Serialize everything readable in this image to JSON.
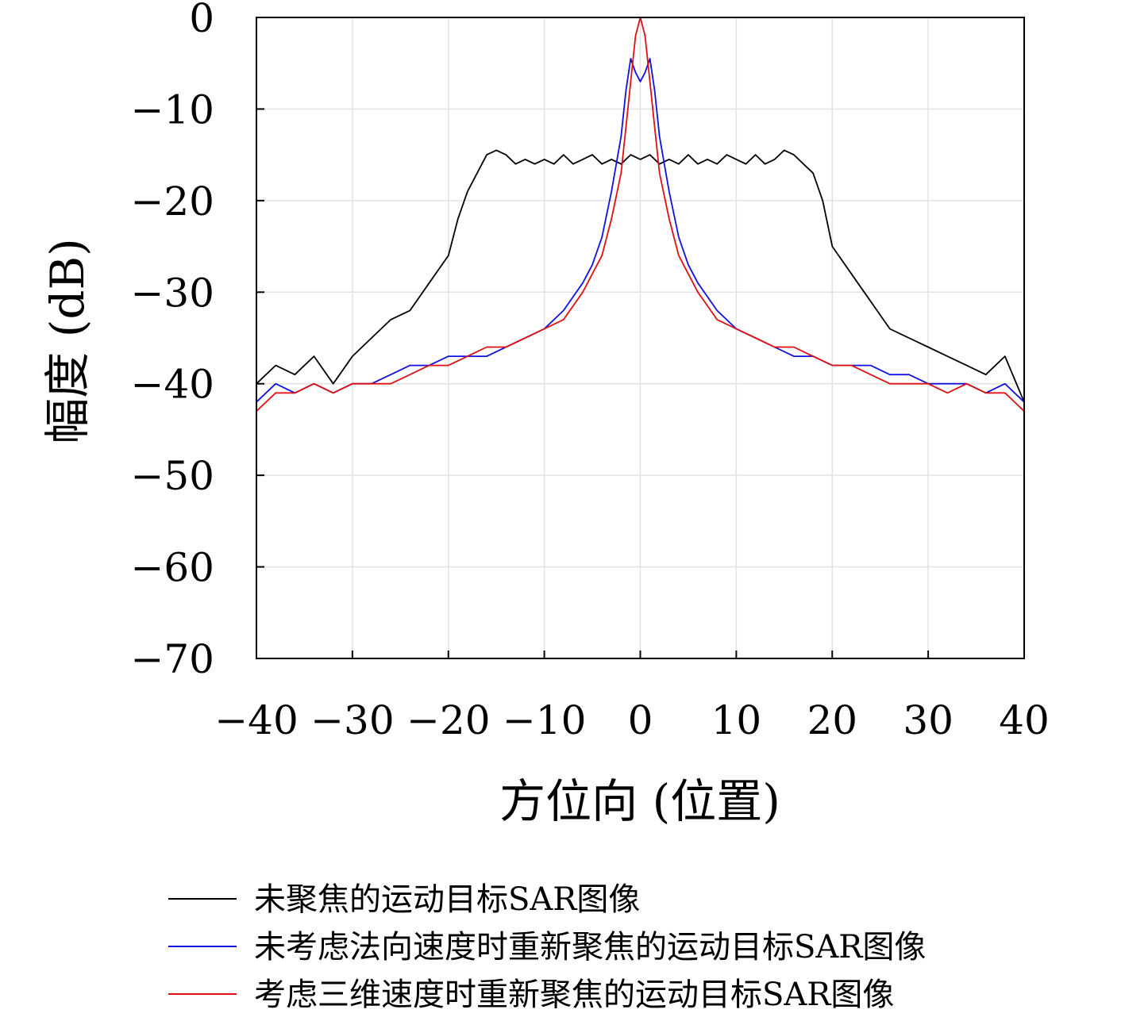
{
  "chart_data": {
    "type": "line",
    "title": "",
    "xlabel": "方位向 (位置)",
    "ylabel": "幅度 (dB)",
    "xlim": [
      -40,
      40
    ],
    "ylim": [
      -70,
      0
    ],
    "xticks": [
      -40,
      -30,
      -20,
      -10,
      0,
      10,
      20,
      30,
      40
    ],
    "xtick_labels": [
      "−40",
      "−30",
      "−20",
      "−10",
      "0",
      "10",
      "20",
      "30",
      "40"
    ],
    "yticks": [
      0,
      -10,
      -20,
      -30,
      -40,
      -50,
      -60,
      -70
    ],
    "ytick_labels": [
      "0",
      "−10",
      "−20",
      "−30",
      "−40",
      "−50",
      "−60",
      "−70"
    ],
    "grid": true,
    "legend_position": "bottom",
    "series": [
      {
        "name": "未聚焦的运动目标SAR图像",
        "color": "#000000",
        "x": [
          -40,
          -38,
          -36,
          -34,
          -32,
          -30,
          -28,
          -26,
          -24,
          -22,
          -20,
          -19,
          -18,
          -17,
          -16,
          -15,
          -14,
          -13,
          -12,
          -11,
          -10,
          -9,
          -8,
          -7,
          -6,
          -5,
          -4,
          -3,
          -2,
          -1,
          0,
          1,
          2,
          3,
          4,
          5,
          6,
          7,
          8,
          9,
          10,
          11,
          12,
          13,
          14,
          15,
          16,
          17,
          18,
          19,
          20,
          22,
          24,
          26,
          28,
          30,
          32,
          34,
          36,
          38,
          40
        ],
        "y": [
          -40,
          -38,
          -39,
          -37,
          -40,
          -37,
          -35,
          -33,
          -32,
          -29,
          -26,
          -22,
          -19,
          -17,
          -15,
          -14.5,
          -15,
          -16,
          -15.5,
          -16,
          -15.5,
          -16,
          -15,
          -16,
          -15.5,
          -15,
          -16,
          -15.5,
          -16,
          -15,
          -15.5,
          -15,
          -16,
          -15.5,
          -16,
          -15,
          -16,
          -15.5,
          -16,
          -15,
          -15.5,
          -16,
          -15,
          -16,
          -15.5,
          -14.5,
          -15,
          -16,
          -17,
          -20,
          -25,
          -28,
          -31,
          -34,
          -35,
          -36,
          -37,
          -38,
          -39,
          -37,
          -42
        ]
      },
      {
        "name": "未考虑法向速度时重新聚焦的运动目标SAR图像",
        "color": "#1010e0",
        "x": [
          -40,
          -38,
          -36,
          -34,
          -32,
          -30,
          -28,
          -26,
          -24,
          -22,
          -20,
          -18,
          -16,
          -14,
          -12,
          -10,
          -8,
          -6,
          -5,
          -4,
          -3,
          -2,
          -1.5,
          -1,
          -0.5,
          0,
          0.5,
          1,
          1.5,
          2,
          3,
          4,
          5,
          6,
          8,
          10,
          12,
          14,
          16,
          18,
          20,
          22,
          24,
          26,
          28,
          30,
          32,
          34,
          36,
          38,
          40
        ],
        "y": [
          -42,
          -40,
          -41,
          -40,
          -41,
          -40,
          -40,
          -39,
          -38,
          -38,
          -37,
          -37,
          -37,
          -36,
          -35,
          -34,
          -32,
          -29,
          -27,
          -24,
          -19,
          -13,
          -8,
          -4.5,
          -6,
          -7,
          -6,
          -4.5,
          -8,
          -13,
          -19,
          -24,
          -27,
          -29,
          -32,
          -34,
          -35,
          -36,
          -37,
          -37,
          -38,
          -38,
          -38,
          -39,
          -39,
          -40,
          -40,
          -40,
          -41,
          -40,
          -42
        ]
      },
      {
        "name": "考虑三维速度时重新聚焦的运动目标SAR图像",
        "color": "#e01010",
        "x": [
          -40,
          -38,
          -36,
          -34,
          -32,
          -30,
          -28,
          -26,
          -24,
          -22,
          -20,
          -18,
          -16,
          -14,
          -12,
          -10,
          -8,
          -6,
          -5,
          -4,
          -3,
          -2,
          -1.5,
          -1,
          -0.5,
          0,
          0.5,
          1,
          1.5,
          2,
          3,
          4,
          5,
          6,
          8,
          10,
          12,
          14,
          16,
          18,
          20,
          22,
          24,
          26,
          28,
          30,
          32,
          34,
          36,
          38,
          40
        ],
        "y": [
          -43,
          -41,
          -41,
          -40,
          -41,
          -40,
          -40,
          -40,
          -39,
          -38,
          -38,
          -37,
          -36,
          -36,
          -35,
          -34,
          -33,
          -30,
          -28,
          -26,
          -22,
          -17,
          -12,
          -7,
          -2,
          0,
          -2,
          -7,
          -12,
          -17,
          -22,
          -26,
          -28,
          -30,
          -33,
          -34,
          -35,
          -36,
          -36,
          -37,
          -38,
          -38,
          -39,
          -40,
          -40,
          -40,
          -41,
          -40,
          -41,
          -41,
          -43
        ]
      }
    ]
  }
}
